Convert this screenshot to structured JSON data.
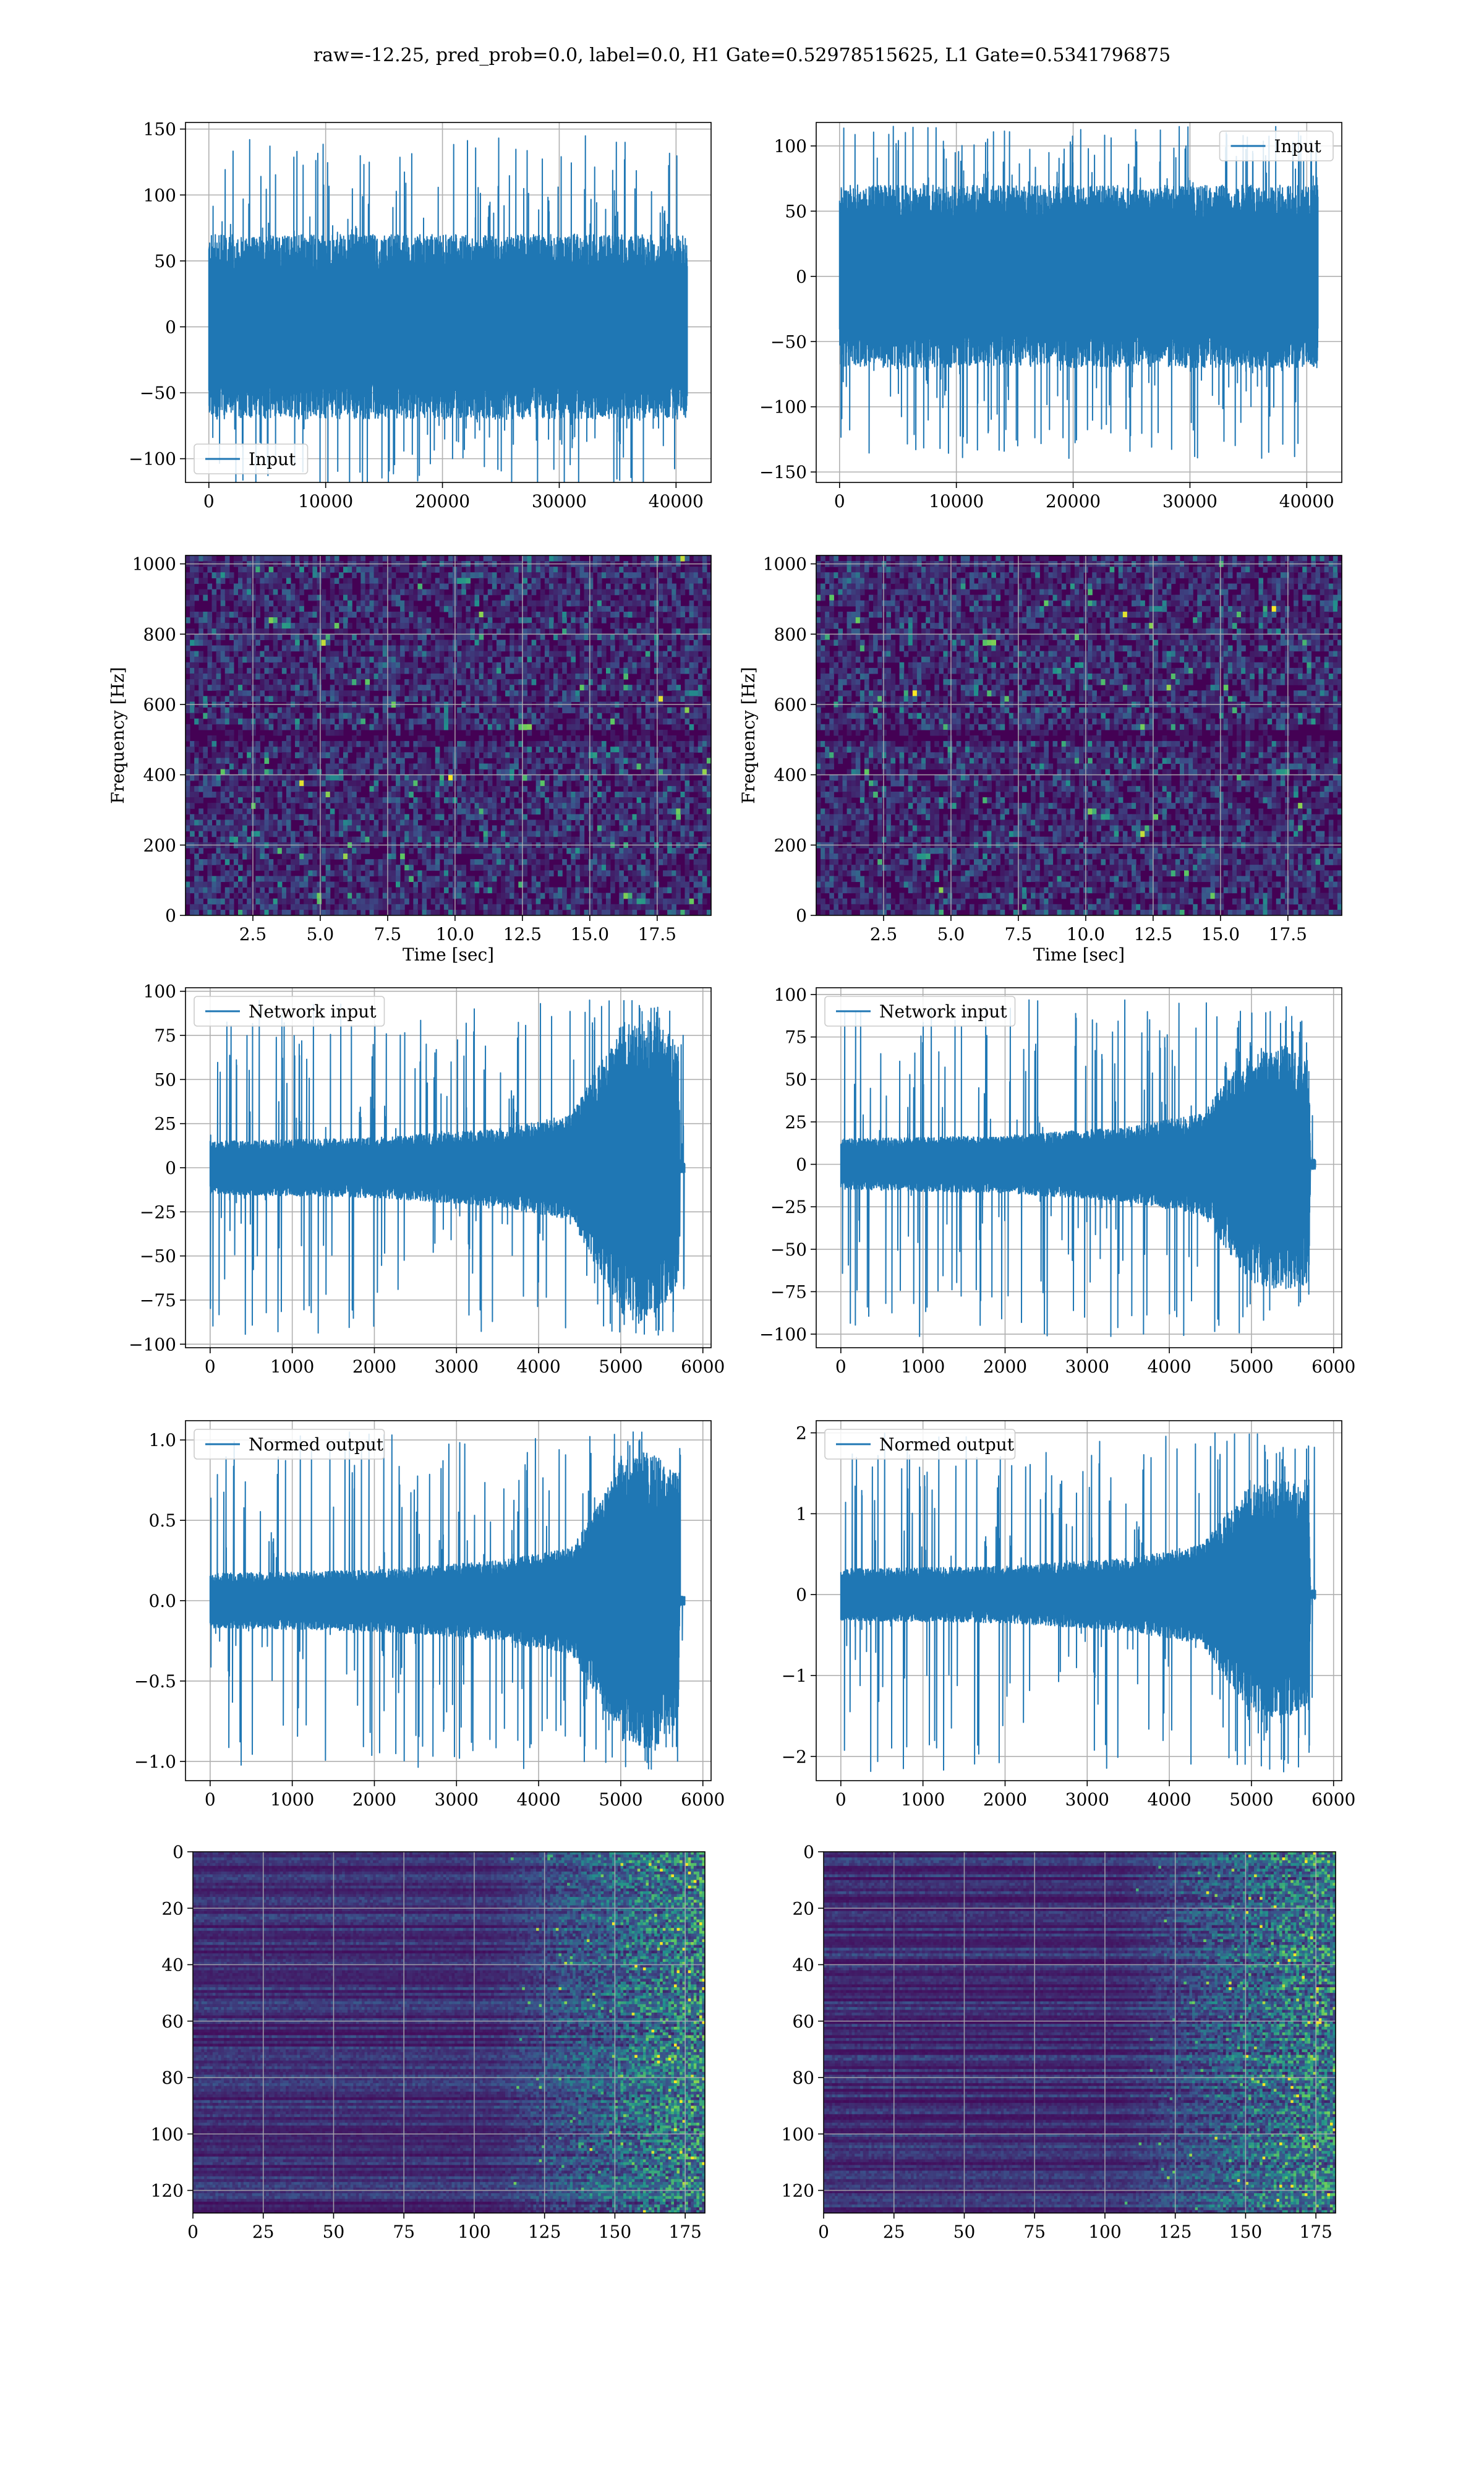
{
  "figure": {
    "title": "raw=-12.25, pred_prob=0.0, label=0.0, H1 Gate=0.52978515625, L1 Gate=0.5341796875"
  },
  "colors": {
    "line": "#1f77b4",
    "grid": "#b0b0b0",
    "viridis_dark": "#440154",
    "viridis_mid": "#3b528b",
    "viridis_teal": "#21918c",
    "viridis_green": "#5ec962",
    "viridis_yellow": "#fde725"
  },
  "chart_data": [
    {
      "id": "h1-input",
      "type": "line",
      "title": "",
      "xlabel": "",
      "ylabel": "",
      "xlim": [
        -2000,
        43000
      ],
      "ylim": [
        -118,
        155
      ],
      "xticks": [
        0,
        10000,
        20000,
        30000,
        40000
      ],
      "yticks": [
        -100,
        -50,
        0,
        50,
        100,
        150
      ],
      "legend_position": "lower-left",
      "series": [
        {
          "name": "Input",
          "x_range": [
            0,
            40960
          ],
          "envelope": [
            {
              "x": 0,
              "max": 70,
              "min": -70
            },
            {
              "x": 40960,
              "max": 70,
              "min": -70
            }
          ],
          "peaks_max": 145,
          "peaks_min": -125
        }
      ],
      "grid": true
    },
    {
      "id": "l1-input",
      "type": "line",
      "title": "",
      "xlabel": "",
      "ylabel": "",
      "xlim": [
        -2000,
        43000
      ],
      "ylim": [
        -158,
        118
      ],
      "xticks": [
        0,
        10000,
        20000,
        30000,
        40000
      ],
      "yticks": [
        -150,
        -100,
        -50,
        0,
        50,
        100
      ],
      "legend_position": "upper-right",
      "series": [
        {
          "name": "Input",
          "x_range": [
            0,
            40960
          ],
          "envelope": [
            {
              "x": 0,
              "max": 70,
              "min": -70
            },
            {
              "x": 40960,
              "max": 70,
              "min": -70
            }
          ],
          "peaks_max": 115,
          "peaks_min": -140
        }
      ],
      "grid": true
    },
    {
      "id": "h1-spectrogram",
      "type": "heatmap",
      "title": "",
      "xlabel": "Time [sec]",
      "ylabel": "Frequency [Hz]",
      "xlim": [
        0,
        19.5
      ],
      "ylim": [
        0,
        1024
      ],
      "xticks": [
        2.5,
        5.0,
        7.5,
        10.0,
        12.5,
        15.0,
        17.5
      ],
      "yticks": [
        0,
        200,
        400,
        600,
        800,
        1000
      ],
      "colormap": "viridis",
      "grid": true
    },
    {
      "id": "l1-spectrogram",
      "type": "heatmap",
      "title": "",
      "xlabel": "Time [sec]",
      "ylabel": "Frequency [Hz]",
      "xlim": [
        0,
        19.5
      ],
      "ylim": [
        0,
        1024
      ],
      "xticks": [
        2.5,
        5.0,
        7.5,
        10.0,
        12.5,
        15.0,
        17.5
      ],
      "yticks": [
        0,
        200,
        400,
        600,
        800,
        1000
      ],
      "colormap": "viridis",
      "grid": true
    },
    {
      "id": "h1-network-input",
      "type": "line",
      "title": "",
      "xlabel": "",
      "ylabel": "",
      "xlim": [
        -300,
        6100
      ],
      "ylim": [
        -102,
        102
      ],
      "xticks": [
        0,
        1000,
        2000,
        3000,
        4000,
        5000,
        6000
      ],
      "yticks": [
        -100,
        -75,
        -50,
        -25,
        0,
        25,
        50,
        75,
        100
      ],
      "legend_position": "upper-left",
      "series": [
        {
          "name": "Network input",
          "x_range": [
            0,
            5780
          ],
          "envelope": [
            {
              "x": 0,
              "max": 15,
              "min": -15
            },
            {
              "x": 2000,
              "max": 17,
              "min": -17
            },
            {
              "x": 3500,
              "max": 22,
              "min": -22
            },
            {
              "x": 4400,
              "max": 30,
              "min": -30
            },
            {
              "x": 4700,
              "max": 55,
              "min": -55
            },
            {
              "x": 5000,
              "max": 80,
              "min": -80
            },
            {
              "x": 5400,
              "max": 85,
              "min": -85
            },
            {
              "x": 5700,
              "max": 70,
              "min": -70
            },
            {
              "x": 5720,
              "max": 3,
              "min": -3
            },
            {
              "x": 5780,
              "max": 3,
              "min": -3
            }
          ],
          "peaks_max": 95,
          "peaks_min": -95
        }
      ],
      "grid": true
    },
    {
      "id": "l1-network-input",
      "type": "line",
      "title": "",
      "xlabel": "",
      "ylabel": "",
      "xlim": [
        -300,
        6100
      ],
      "ylim": [
        -108,
        104
      ],
      "xticks": [
        0,
        1000,
        2000,
        3000,
        4000,
        5000,
        6000
      ],
      "yticks": [
        -100,
        -75,
        -50,
        -25,
        0,
        25,
        50,
        75,
        100
      ],
      "legend_position": "upper-left",
      "series": [
        {
          "name": "Network input",
          "x_range": [
            0,
            5780
          ],
          "envelope": [
            {
              "x": 0,
              "max": 15,
              "min": -15
            },
            {
              "x": 2000,
              "max": 17,
              "min": -17
            },
            {
              "x": 3500,
              "max": 22,
              "min": -22
            },
            {
              "x": 4400,
              "max": 30,
              "min": -30
            },
            {
              "x": 4700,
              "max": 50,
              "min": -50
            },
            {
              "x": 5000,
              "max": 65,
              "min": -70
            },
            {
              "x": 5400,
              "max": 70,
              "min": -75
            },
            {
              "x": 5700,
              "max": 60,
              "min": -70
            },
            {
              "x": 5720,
              "max": 3,
              "min": -3
            },
            {
              "x": 5780,
              "max": 3,
              "min": -3
            }
          ],
          "peaks_max": 97,
          "peaks_min": -102
        }
      ],
      "grid": true
    },
    {
      "id": "h1-normed-output",
      "type": "line",
      "title": "",
      "xlabel": "",
      "ylabel": "",
      "xlim": [
        -300,
        6100
      ],
      "ylim": [
        -1.12,
        1.12
      ],
      "xticks": [
        0,
        1000,
        2000,
        3000,
        4000,
        5000,
        6000
      ],
      "yticks": [
        -1.0,
        -0.5,
        0.0,
        0.5,
        1.0
      ],
      "legend_position": "upper-left",
      "series": [
        {
          "name": "Normed output",
          "x_range": [
            0,
            5780
          ],
          "envelope": [
            {
              "x": 0,
              "max": 0.17,
              "min": -0.17
            },
            {
              "x": 2000,
              "max": 0.19,
              "min": -0.19
            },
            {
              "x": 3500,
              "max": 0.25,
              "min": -0.25
            },
            {
              "x": 4400,
              "max": 0.33,
              "min": -0.33
            },
            {
              "x": 4700,
              "max": 0.6,
              "min": -0.6
            },
            {
              "x": 5000,
              "max": 0.88,
              "min": -0.88
            },
            {
              "x": 5400,
              "max": 0.92,
              "min": -0.92
            },
            {
              "x": 5700,
              "max": 0.78,
              "min": -0.78
            },
            {
              "x": 5720,
              "max": 0.03,
              "min": -0.03
            },
            {
              "x": 5780,
              "max": 0.03,
              "min": -0.03
            }
          ],
          "peaks_max": 1.05,
          "peaks_min": -1.05
        }
      ],
      "grid": true
    },
    {
      "id": "l1-normed-output",
      "type": "line",
      "title": "",
      "xlabel": "",
      "ylabel": "",
      "xlim": [
        -300,
        6100
      ],
      "ylim": [
        -2.3,
        2.15
      ],
      "xticks": [
        0,
        1000,
        2000,
        3000,
        4000,
        5000,
        6000
      ],
      "yticks": [
        -2,
        -1,
        0,
        1,
        2
      ],
      "legend_position": "upper-left",
      "series": [
        {
          "name": "Normed output",
          "x_range": [
            0,
            5780
          ],
          "envelope": [
            {
              "x": 0,
              "max": 0.32,
              "min": -0.32
            },
            {
              "x": 2000,
              "max": 0.35,
              "min": -0.35
            },
            {
              "x": 3500,
              "max": 0.45,
              "min": -0.45
            },
            {
              "x": 4400,
              "max": 0.62,
              "min": -0.62
            },
            {
              "x": 4700,
              "max": 1.0,
              "min": -1.05
            },
            {
              "x": 5000,
              "max": 1.35,
              "min": -1.45
            },
            {
              "x": 5400,
              "max": 1.45,
              "min": -1.55
            },
            {
              "x": 5700,
              "max": 1.25,
              "min": -1.45
            },
            {
              "x": 5720,
              "max": 0.06,
              "min": -0.06
            },
            {
              "x": 5780,
              "max": 0.06,
              "min": -0.06
            }
          ],
          "peaks_max": 2.0,
          "peaks_min": -2.2
        }
      ],
      "grid": true
    },
    {
      "id": "h1-feature-map",
      "type": "heatmap",
      "title": "",
      "xlabel": "",
      "ylabel": "",
      "xlim": [
        0,
        182
      ],
      "ylim": [
        128,
        0
      ],
      "xticks": [
        0,
        25,
        50,
        75,
        100,
        125,
        150,
        175
      ],
      "yticks": [
        0,
        20,
        40,
        60,
        80,
        100,
        120
      ],
      "colormap": "viridis",
      "grid": true
    },
    {
      "id": "l1-feature-map",
      "type": "heatmap",
      "title": "",
      "xlabel": "",
      "ylabel": "",
      "xlim": [
        0,
        182
      ],
      "ylim": [
        128,
        0
      ],
      "xticks": [
        0,
        25,
        50,
        75,
        100,
        125,
        150,
        175
      ],
      "yticks": [
        0,
        20,
        40,
        60,
        80,
        100,
        120
      ],
      "colormap": "viridis",
      "grid": true
    }
  ]
}
